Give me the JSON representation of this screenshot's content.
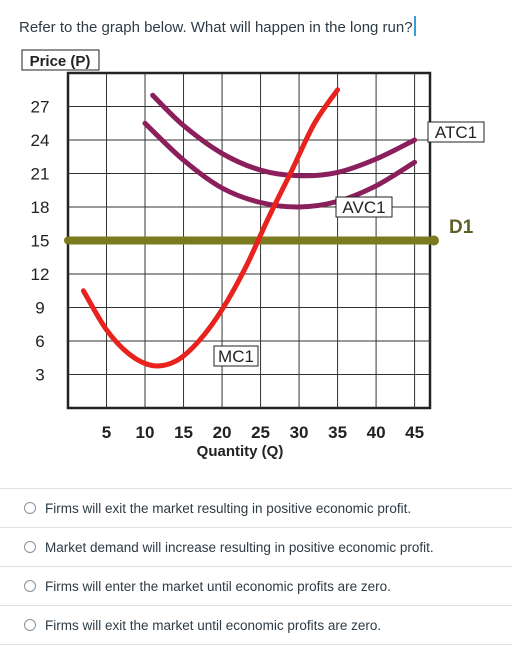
{
  "question": {
    "text": "Refer to the graph below. What will happen in the long run?"
  },
  "chart_data": {
    "type": "line",
    "ylabel": "Price (P)",
    "xlabel": "Quantity (Q)",
    "y_ticks": [
      "27",
      "24",
      "21",
      "18",
      "15",
      "12",
      "9",
      "6",
      "3"
    ],
    "x_ticks": [
      "5",
      "10",
      "15",
      "20",
      "25",
      "30",
      "35",
      "40",
      "45"
    ],
    "xlim": [
      0,
      47
    ],
    "ylim": [
      0,
      30
    ],
    "grid": true,
    "series": [
      {
        "name": "MC1",
        "label": "MC1",
        "color": "#e8221c",
        "x": [
          2,
          5,
          8,
          11,
          14,
          17,
          20,
          23,
          26,
          29,
          32,
          35
        ],
        "y": [
          10.5,
          7,
          4.8,
          3.8,
          4.2,
          6,
          8.8,
          12.5,
          17,
          21.2,
          25.5,
          28.5
        ]
      },
      {
        "name": "ATC1",
        "label": "ATC1",
        "color": "#8b1f5c",
        "x": [
          11,
          15,
          20,
          25,
          30,
          35,
          40,
          45
        ],
        "y": [
          28,
          25.3,
          22.8,
          21.3,
          20.8,
          21.1,
          22.3,
          24
        ]
      },
      {
        "name": "AVC1",
        "label": "AVC1",
        "color": "#8b1f5c",
        "x": [
          10,
          15,
          20,
          25,
          30,
          35,
          40,
          45
        ],
        "y": [
          25.5,
          22.2,
          19.7,
          18.4,
          18,
          18.5,
          19.9,
          22
        ]
      },
      {
        "name": "D1",
        "label": "D1",
        "color": "#7a7a1e",
        "x": [
          0,
          47
        ],
        "y": [
          15,
          15
        ]
      }
    ]
  },
  "options": [
    {
      "label": "Firms will exit the market resulting in positive economic profit."
    },
    {
      "label": "Market demand will increase resulting in positive economic profit."
    },
    {
      "label": "Firms will enter the market until economic profits are zero."
    },
    {
      "label": "Firms will exit the market until economic profits are zero."
    }
  ]
}
